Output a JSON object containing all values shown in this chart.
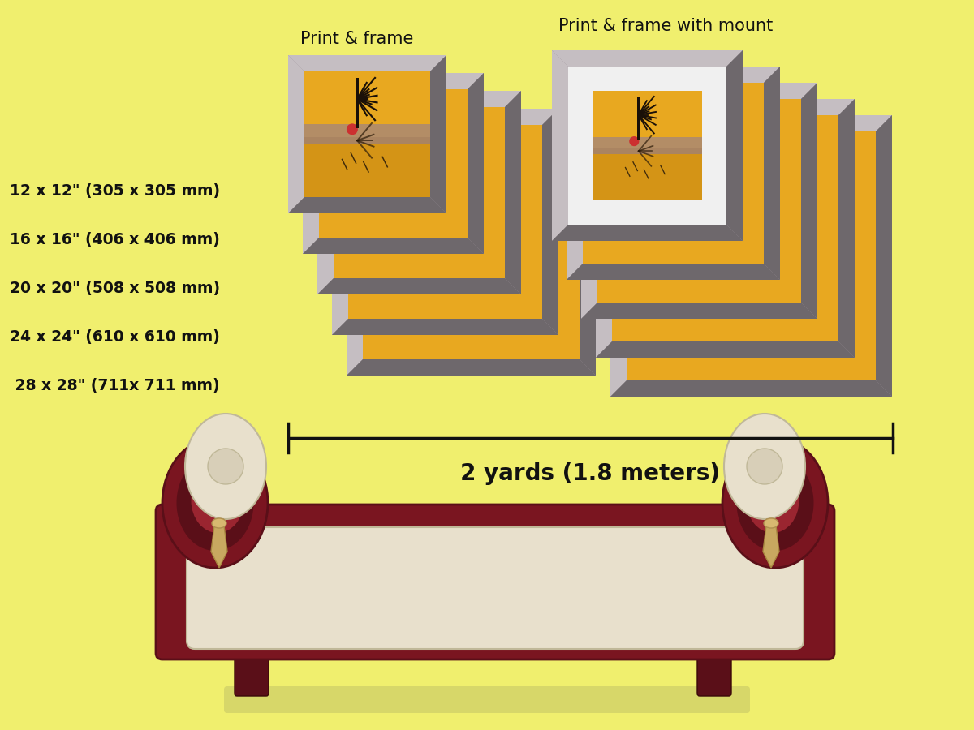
{
  "bg_color": "#f0ef6e",
  "title_frame": "Print & frame",
  "title_mount": "Print & frame with mount",
  "size_labels": [
    "12 x 12\" (305 x 305 mm)",
    "16 x 16\" (406 x 406 mm)",
    "20 x 20\" (508 x 508 mm)",
    "24 x 24\" (610 x 610 mm)",
    " 28 x 28\" (711x 711 mm)"
  ],
  "measure_label": "2 yards (1.8 meters)",
  "frame_color": "#9b9097",
  "frame_light": "#c5bec2",
  "frame_dark": "#6e686c",
  "mount_color": "#f0f0f0",
  "photo_gold": "#e8a820",
  "photo_dark_gold": "#c88a10",
  "photo_tree": "#1a0f08",
  "label_fontsize": 13.5,
  "title_fontsize": 15,
  "measure_fontsize": 20
}
